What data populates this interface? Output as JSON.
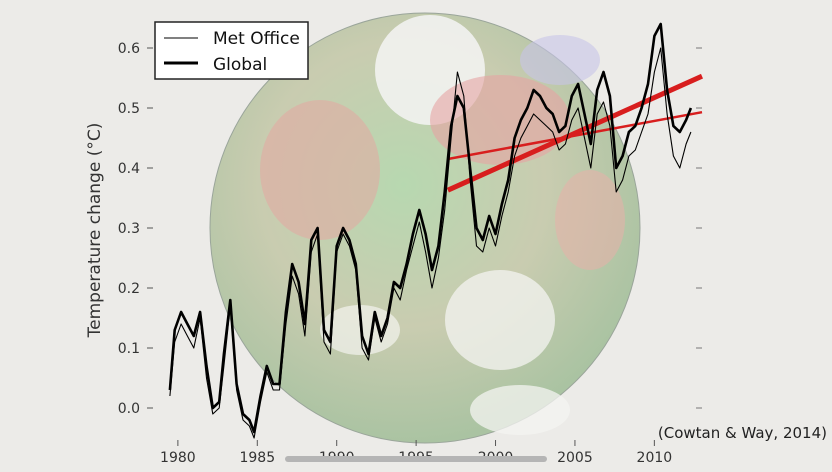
{
  "chart_data": {
    "type": "line",
    "ylabel": "Temperature change (°C)",
    "xlim": [
      1979,
      2013
    ],
    "ylim": [
      -0.05,
      0.65
    ],
    "x_ticks": [
      "1980",
      "1985",
      "1990",
      "1995",
      "2000",
      "2005",
      "2010"
    ],
    "y_ticks": [
      "0.0",
      "0.1",
      "0.2",
      "0.3",
      "0.4",
      "0.5",
      "0.6"
    ],
    "legend_position": "top-left",
    "credit": "(Cowtan & Way, 2014)",
    "series": [
      {
        "name": "Met Office",
        "style": "thin",
        "color": "#000000",
        "x": [
          1979.5,
          1979.8,
          1980.2,
          1980.6,
          1981.0,
          1981.4,
          1981.8,
          1982.2,
          1982.6,
          1982.9,
          1983.3,
          1983.7,
          1984.1,
          1984.5,
          1984.8,
          1985.2,
          1985.6,
          1986.0,
          1986.4,
          1986.8,
          1987.2,
          1987.6,
          1988.0,
          1988.4,
          1988.8,
          1989.2,
          1989.6,
          1990.0,
          1990.4,
          1990.8,
          1991.2,
          1991.6,
          1992.0,
          1992.4,
          1992.8,
          1993.2,
          1993.6,
          1994.0,
          1994.4,
          1994.8,
          1995.2,
          1995.6,
          1996.0,
          1996.4,
          1996.8,
          1997.2,
          1997.6,
          1998.0,
          1998.4,
          1998.8,
          1999.2,
          1999.6,
          2000.0,
          2000.4,
          2000.8,
          2001.2,
          2001.6,
          2002.0,
          2002.4,
          2002.8,
          2003.2,
          2003.6,
          2004.0,
          2004.4,
          2004.8,
          2005.2,
          2005.6,
          2006.0,
          2006.4,
          2006.8,
          2007.2,
          2007.6,
          2008.0,
          2008.4,
          2008.8,
          2009.2,
          2009.6,
          2010.0,
          2010.4,
          2010.8,
          2011.2,
          2011.6,
          2012.0,
          2012.3
        ],
        "y": [
          0.02,
          0.11,
          0.14,
          0.12,
          0.1,
          0.15,
          0.05,
          -0.01,
          0.0,
          0.07,
          0.17,
          0.03,
          -0.02,
          -0.03,
          -0.05,
          0.01,
          0.06,
          0.03,
          0.03,
          0.14,
          0.22,
          0.19,
          0.12,
          0.26,
          0.29,
          0.11,
          0.09,
          0.26,
          0.29,
          0.27,
          0.23,
          0.1,
          0.08,
          0.15,
          0.11,
          0.14,
          0.2,
          0.18,
          0.23,
          0.27,
          0.31,
          0.26,
          0.2,
          0.25,
          0.33,
          0.45,
          0.56,
          0.52,
          0.38,
          0.27,
          0.26,
          0.3,
          0.27,
          0.32,
          0.36,
          0.42,
          0.45,
          0.47,
          0.49,
          0.48,
          0.47,
          0.46,
          0.43,
          0.44,
          0.48,
          0.5,
          0.45,
          0.4,
          0.49,
          0.51,
          0.47,
          0.36,
          0.38,
          0.42,
          0.43,
          0.46,
          0.49,
          0.56,
          0.6,
          0.49,
          0.42,
          0.4,
          0.44,
          0.46
        ]
      },
      {
        "name": "Global",
        "style": "thick",
        "color": "#000000",
        "x": [
          1979.5,
          1979.8,
          1980.2,
          1980.6,
          1981.0,
          1981.4,
          1981.8,
          1982.2,
          1982.6,
          1982.9,
          1983.3,
          1983.7,
          1984.1,
          1984.5,
          1984.8,
          1985.2,
          1985.6,
          1986.0,
          1986.4,
          1986.8,
          1987.2,
          1987.6,
          1988.0,
          1988.4,
          1988.8,
          1989.2,
          1989.6,
          1990.0,
          1990.4,
          1990.8,
          1991.2,
          1991.6,
          1992.0,
          1992.4,
          1992.8,
          1993.2,
          1993.6,
          1994.0,
          1994.4,
          1994.8,
          1995.2,
          1995.6,
          1996.0,
          1996.4,
          1996.8,
          1997.2,
          1997.6,
          1998.0,
          1998.4,
          1998.8,
          1999.2,
          1999.6,
          2000.0,
          2000.4,
          2000.8,
          2001.2,
          2001.6,
          2002.0,
          2002.4,
          2002.8,
          2003.2,
          2003.6,
          2004.0,
          2004.4,
          2004.8,
          2005.2,
          2005.6,
          2006.0,
          2006.4,
          2006.8,
          2007.2,
          2007.6,
          2008.0,
          2008.4,
          2008.8,
          2009.2,
          2009.6,
          2010.0,
          2010.4,
          2010.8,
          2011.2,
          2011.6,
          2012.0,
          2012.3
        ],
        "y": [
          0.03,
          0.13,
          0.16,
          0.14,
          0.12,
          0.16,
          0.07,
          0.0,
          0.01,
          0.09,
          0.18,
          0.04,
          -0.01,
          -0.02,
          -0.04,
          0.02,
          0.07,
          0.04,
          0.04,
          0.16,
          0.24,
          0.21,
          0.14,
          0.28,
          0.3,
          0.13,
          0.11,
          0.27,
          0.3,
          0.28,
          0.24,
          0.12,
          0.09,
          0.16,
          0.12,
          0.15,
          0.21,
          0.2,
          0.24,
          0.29,
          0.33,
          0.29,
          0.23,
          0.27,
          0.36,
          0.47,
          0.52,
          0.5,
          0.4,
          0.3,
          0.28,
          0.32,
          0.29,
          0.34,
          0.38,
          0.45,
          0.48,
          0.5,
          0.53,
          0.52,
          0.5,
          0.49,
          0.46,
          0.47,
          0.52,
          0.54,
          0.49,
          0.44,
          0.53,
          0.56,
          0.52,
          0.4,
          0.42,
          0.46,
          0.47,
          0.5,
          0.54,
          0.62,
          0.64,
          0.53,
          0.47,
          0.46,
          0.48,
          0.5
        ]
      }
    ],
    "trend_lines": [
      {
        "x": [
          1997.0,
          2013.0
        ],
        "y": [
          0.415,
          0.493
        ],
        "width": "thin",
        "color": "#d81e1e"
      },
      {
        "x": [
          1997.0,
          2013.0
        ],
        "y": [
          0.363,
          0.553
        ],
        "width": "thick",
        "color": "#d81e1e"
      }
    ]
  }
}
